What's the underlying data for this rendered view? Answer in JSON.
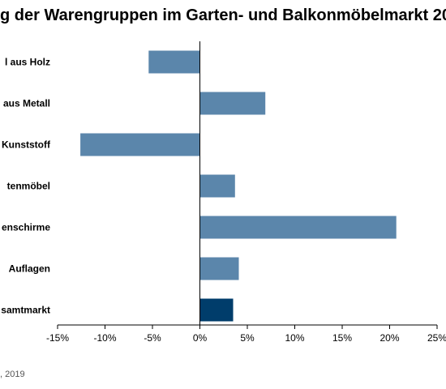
{
  "title": "g der Warengruppen im Garten- und Balkonmöbelmarkt 20",
  "source": ", 2019",
  "colors": {
    "bar": "#5b86ab",
    "highlight": "#003d6b",
    "axis": "#000000"
  },
  "chart_data": {
    "type": "bar",
    "orientation": "horizontal",
    "categories": [
      "l aus Holz",
      "aus Metall",
      "Kunststoff",
      "tenmöbel",
      "enschirme",
      "Auflagen",
      "samtmarkt"
    ],
    "values": [
      -5.4,
      6.9,
      -12.6,
      3.7,
      20.7,
      4.1,
      3.5
    ],
    "highlight_index": 6,
    "xlim": [
      -15,
      25
    ],
    "xticks": [
      -15,
      -10,
      -5,
      0,
      5,
      10,
      15,
      20,
      25
    ],
    "tick_labels": [
      "-15%",
      "-10%",
      "-5%",
      "0%",
      "5%",
      "10%",
      "15%",
      "20%",
      "25%"
    ],
    "grid": false,
    "legend": "none"
  }
}
